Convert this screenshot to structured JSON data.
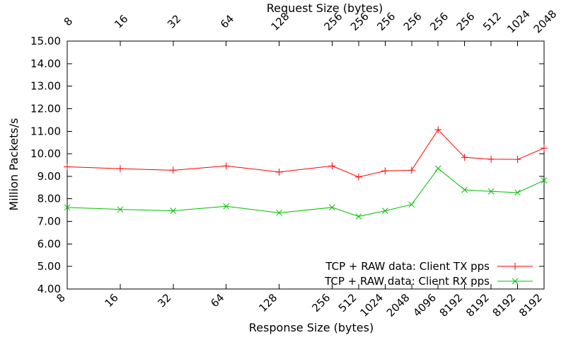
{
  "page": {
    "background": "#ffffff",
    "kind": "gnuplot line chart"
  },
  "chart_data": {
    "type": "line",
    "x2label": "Request Size (bytes)",
    "xlabel": "Response Size (bytes)",
    "ylabel": "Million Packets/s",
    "ylim": [
      4,
      15
    ],
    "ytick_step": 1,
    "ytick_labels": [
      "4.00",
      "5.00",
      "6.00",
      "7.00",
      "8.00",
      "9.00",
      "10.00",
      "11.00",
      "12.00",
      "13.00",
      "14.00",
      "15.00"
    ],
    "xlim": [
      6,
      24
    ],
    "x_positions": [
      6,
      8,
      10,
      12,
      14,
      16,
      17,
      18,
      19,
      20,
      21,
      22,
      23,
      24
    ],
    "xtick_labels_bottom": [
      "8",
      "16",
      "32",
      "64",
      "128",
      "256",
      "512",
      "1024",
      "2048",
      "4096",
      "8192",
      "8192",
      "8192",
      "8192"
    ],
    "xtick_labels_top": [
      "8",
      "16",
      "32",
      "64",
      "128",
      "256",
      "256",
      "256",
      "256",
      "256",
      "256",
      "512",
      "1024",
      "2048"
    ],
    "grid": false,
    "legend_position": "inside-bottom-right",
    "axis_color": "#000000",
    "text_color": "#000000",
    "series": [
      {
        "name": "TCP + RAW data: Client TX pps",
        "color": "#ff0000",
        "marker": "plus",
        "values": [
          9.42,
          9.34,
          9.27,
          9.46,
          9.19,
          9.46,
          8.97,
          9.24,
          9.27,
          11.07,
          9.84,
          9.76,
          9.75,
          10.25
        ]
      },
      {
        "name": "TCP + RAW data: Client RX pps",
        "color": "#00c000",
        "marker": "x",
        "values": [
          7.62,
          7.53,
          7.47,
          7.67,
          7.38,
          7.62,
          7.22,
          7.47,
          7.75,
          9.35,
          8.4,
          8.33,
          8.28,
          8.82
        ]
      }
    ]
  }
}
